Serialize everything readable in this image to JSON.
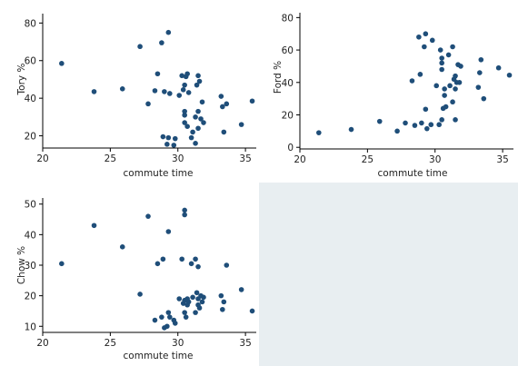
{
  "chart_data": [
    {
      "type": "scatter",
      "xlabel": "commute time",
      "ylabel": "Tory %",
      "xlim": [
        20,
        35.8
      ],
      "ylim": [
        13.5,
        85
      ],
      "xticks": [
        "20",
        "25",
        "30",
        "35"
      ],
      "yticks": [
        "20",
        "40",
        "60",
        "80"
      ],
      "marker_color": "#1f4e79",
      "points": [
        {
          "x": 21.4,
          "y": 58.5
        },
        {
          "x": 23.8,
          "y": 43.5
        },
        {
          "x": 25.9,
          "y": 45
        },
        {
          "x": 27.2,
          "y": 67.5
        },
        {
          "x": 27.8,
          "y": 37
        },
        {
          "x": 28.3,
          "y": 44
        },
        {
          "x": 28.5,
          "y": 53
        },
        {
          "x": 28.8,
          "y": 69.5
        },
        {
          "x": 29.0,
          "y": 43.5
        },
        {
          "x": 28.9,
          "y": 19.5
        },
        {
          "x": 29.2,
          "y": 15.5
        },
        {
          "x": 29.3,
          "y": 19
        },
        {
          "x": 29.3,
          "y": 75
        },
        {
          "x": 29.4,
          "y": 42.5
        },
        {
          "x": 29.7,
          "y": 15
        },
        {
          "x": 29.8,
          "y": 18.5
        },
        {
          "x": 30.1,
          "y": 41.5
        },
        {
          "x": 30.3,
          "y": 52
        },
        {
          "x": 30.4,
          "y": 44.5
        },
        {
          "x": 30.5,
          "y": 47
        },
        {
          "x": 30.5,
          "y": 33
        },
        {
          "x": 30.5,
          "y": 31
        },
        {
          "x": 30.5,
          "y": 27
        },
        {
          "x": 30.6,
          "y": 51.5
        },
        {
          "x": 30.7,
          "y": 53
        },
        {
          "x": 30.7,
          "y": 25
        },
        {
          "x": 30.8,
          "y": 43
        },
        {
          "x": 31.0,
          "y": 19
        },
        {
          "x": 31.1,
          "y": 22
        },
        {
          "x": 31.3,
          "y": 30
        },
        {
          "x": 31.3,
          "y": 16
        },
        {
          "x": 31.4,
          "y": 47
        },
        {
          "x": 31.5,
          "y": 24
        },
        {
          "x": 31.5,
          "y": 33
        },
        {
          "x": 31.5,
          "y": 52
        },
        {
          "x": 31.6,
          "y": 49
        },
        {
          "x": 31.7,
          "y": 29
        },
        {
          "x": 31.8,
          "y": 38
        },
        {
          "x": 31.9,
          "y": 27
        },
        {
          "x": 33.2,
          "y": 41
        },
        {
          "x": 33.3,
          "y": 35.5
        },
        {
          "x": 33.4,
          "y": 22
        },
        {
          "x": 33.6,
          "y": 37
        },
        {
          "x": 34.7,
          "y": 26
        },
        {
          "x": 35.5,
          "y": 38.5
        }
      ]
    },
    {
      "type": "scatter",
      "xlabel": "commute time",
      "ylabel": "Ford %",
      "xlim": [
        20,
        35.8
      ],
      "ylim": [
        -1,
        83
      ],
      "xticks": [
        "20",
        "25",
        "30",
        "35"
      ],
      "yticks": [
        "0",
        "20",
        "40",
        "60",
        "80"
      ],
      "marker_color": "#1f4e79",
      "points": [
        {
          "x": 21.4,
          "y": 9
        },
        {
          "x": 23.8,
          "y": 11
        },
        {
          "x": 25.9,
          "y": 16
        },
        {
          "x": 27.2,
          "y": 10
        },
        {
          "x": 27.8,
          "y": 15
        },
        {
          "x": 28.3,
          "y": 41
        },
        {
          "x": 28.5,
          "y": 13.5
        },
        {
          "x": 28.8,
          "y": 68
        },
        {
          "x": 29.0,
          "y": 15
        },
        {
          "x": 28.9,
          "y": 45
        },
        {
          "x": 29.2,
          "y": 62
        },
        {
          "x": 29.3,
          "y": 70
        },
        {
          "x": 29.3,
          "y": 23.5
        },
        {
          "x": 29.4,
          "y": 11.5
        },
        {
          "x": 29.7,
          "y": 14
        },
        {
          "x": 29.8,
          "y": 66
        },
        {
          "x": 30.1,
          "y": 38
        },
        {
          "x": 30.3,
          "y": 14
        },
        {
          "x": 30.4,
          "y": 60
        },
        {
          "x": 30.5,
          "y": 48
        },
        {
          "x": 30.5,
          "y": 52
        },
        {
          "x": 30.5,
          "y": 55
        },
        {
          "x": 30.5,
          "y": 17
        },
        {
          "x": 30.6,
          "y": 24
        },
        {
          "x": 30.7,
          "y": 32
        },
        {
          "x": 30.7,
          "y": 36
        },
        {
          "x": 30.8,
          "y": 25
        },
        {
          "x": 31.0,
          "y": 57
        },
        {
          "x": 31.1,
          "y": 38
        },
        {
          "x": 31.3,
          "y": 62
        },
        {
          "x": 31.3,
          "y": 28
        },
        {
          "x": 31.4,
          "y": 42
        },
        {
          "x": 31.5,
          "y": 44
        },
        {
          "x": 31.5,
          "y": 17
        },
        {
          "x": 31.5,
          "y": 36
        },
        {
          "x": 31.6,
          "y": 40
        },
        {
          "x": 31.7,
          "y": 51
        },
        {
          "x": 31.8,
          "y": 40
        },
        {
          "x": 31.9,
          "y": 50
        },
        {
          "x": 33.2,
          "y": 37
        },
        {
          "x": 33.3,
          "y": 46
        },
        {
          "x": 33.4,
          "y": 54
        },
        {
          "x": 33.6,
          "y": 30
        },
        {
          "x": 34.7,
          "y": 49
        },
        {
          "x": 35.5,
          "y": 44.5
        }
      ]
    },
    {
      "type": "scatter",
      "xlabel": "commute time",
      "ylabel": "Chow %",
      "xlim": [
        20,
        35.8
      ],
      "ylim": [
        8,
        52
      ],
      "xticks": [
        "20",
        "25",
        "30",
        "35"
      ],
      "yticks": [
        "10",
        "20",
        "30",
        "40",
        "50"
      ],
      "marker_color": "#1f4e79",
      "points": [
        {
          "x": 21.4,
          "y": 30.5
        },
        {
          "x": 23.8,
          "y": 43
        },
        {
          "x": 25.9,
          "y": 36
        },
        {
          "x": 27.2,
          "y": 20.5
        },
        {
          "x": 27.8,
          "y": 46
        },
        {
          "x": 28.3,
          "y": 12
        },
        {
          "x": 28.5,
          "y": 30.5
        },
        {
          "x": 28.8,
          "y": 13
        },
        {
          "x": 29.0,
          "y": 9.5
        },
        {
          "x": 28.9,
          "y": 32
        },
        {
          "x": 29.2,
          "y": 10
        },
        {
          "x": 29.3,
          "y": 14.5
        },
        {
          "x": 29.3,
          "y": 41
        },
        {
          "x": 29.4,
          "y": 13
        },
        {
          "x": 29.7,
          "y": 12
        },
        {
          "x": 29.8,
          "y": 11
        },
        {
          "x": 30.1,
          "y": 19
        },
        {
          "x": 30.3,
          "y": 32
        },
        {
          "x": 30.4,
          "y": 17.5
        },
        {
          "x": 30.5,
          "y": 46.5
        },
        {
          "x": 30.5,
          "y": 48
        },
        {
          "x": 30.5,
          "y": 14.5
        },
        {
          "x": 30.5,
          "y": 18.5
        },
        {
          "x": 30.6,
          "y": 13
        },
        {
          "x": 30.7,
          "y": 17
        },
        {
          "x": 30.7,
          "y": 19
        },
        {
          "x": 30.8,
          "y": 18
        },
        {
          "x": 31.0,
          "y": 30.5
        },
        {
          "x": 31.1,
          "y": 19.5
        },
        {
          "x": 31.3,
          "y": 32
        },
        {
          "x": 31.3,
          "y": 14.5
        },
        {
          "x": 31.4,
          "y": 21
        },
        {
          "x": 31.5,
          "y": 29.5
        },
        {
          "x": 31.5,
          "y": 19
        },
        {
          "x": 31.5,
          "y": 17
        },
        {
          "x": 31.6,
          "y": 16
        },
        {
          "x": 31.7,
          "y": 20
        },
        {
          "x": 31.8,
          "y": 18
        },
        {
          "x": 31.9,
          "y": 19.5
        },
        {
          "x": 33.2,
          "y": 20
        },
        {
          "x": 33.3,
          "y": 15.5
        },
        {
          "x": 33.4,
          "y": 18
        },
        {
          "x": 33.6,
          "y": 30
        },
        {
          "x": 34.7,
          "y": 22
        },
        {
          "x": 35.5,
          "y": 15
        }
      ]
    }
  ]
}
